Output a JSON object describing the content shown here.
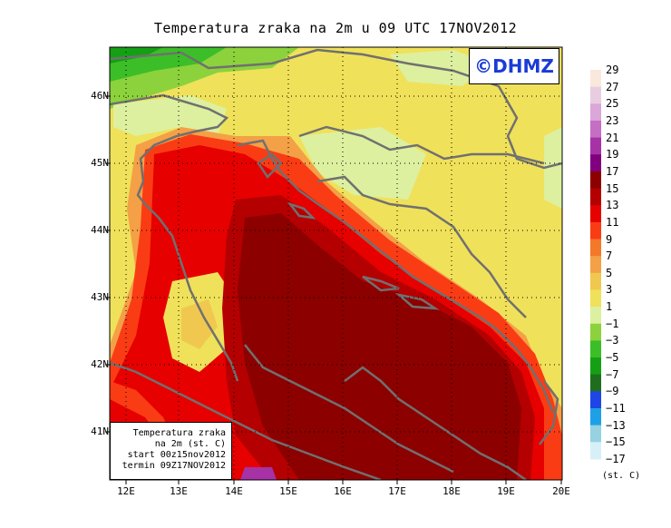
{
  "title": "Temperatura zraka na 2m u 09 UTC 17NOV2012",
  "copyright": "©DHMZ",
  "info_box": {
    "line1": "Temperatura zraka",
    "line2": "na 2m (st. C)",
    "line3": "start 00z15nov2012",
    "line4": "termin 09Z17NOV2012"
  },
  "lat_labels": [
    "46N",
    "45N",
    "44N",
    "43N",
    "42N",
    "41N"
  ],
  "lon_labels": [
    "12E",
    "13E",
    "14E",
    "15E",
    "16E",
    "17E",
    "18E",
    "19E",
    "20E"
  ],
  "legend": {
    "unit": "(st. C)",
    "bounds": [
      "29",
      "27",
      "25",
      "23",
      "21",
      "19",
      "17",
      "15",
      "13",
      "11",
      "9",
      "7",
      "5",
      "3",
      "1",
      "−1",
      "−3",
      "−5",
      "−7",
      "−9",
      "−11",
      "−13",
      "−15",
      "−17"
    ],
    "colors": [
      "#fbe8dc",
      "#e8cde0",
      "#dba6d8",
      "#c46ec4",
      "#a632a6",
      "#800080",
      "#8c0000",
      "#b40000",
      "#e60000",
      "#fa3c14",
      "#f4782a",
      "#f4a046",
      "#f0c850",
      "#f0e15a",
      "#dcf0a0",
      "#8cd23c",
      "#3cbe28",
      "#14a014",
      "#1e6e1e",
      "#1e46e6",
      "#1ea0e6",
      "#96d2e1",
      "#d7f0f8"
    ]
  }
}
